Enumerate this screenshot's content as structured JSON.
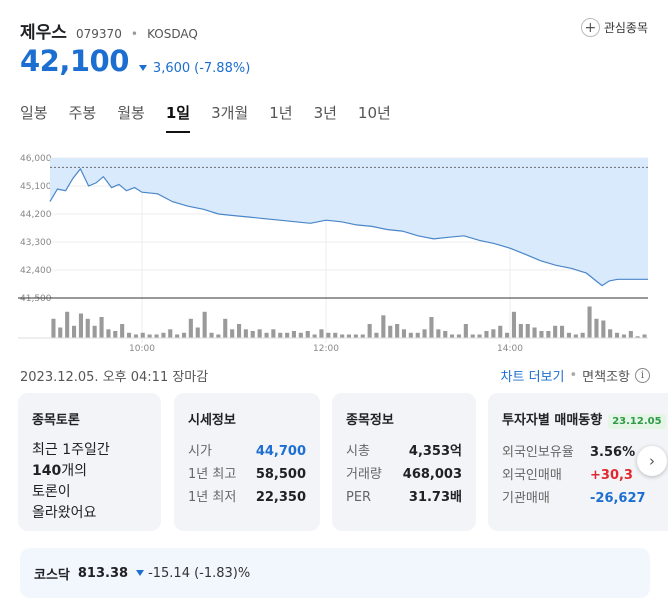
{
  "stock": {
    "name": "제우스",
    "code": "079370",
    "separator": "•",
    "market": "KOSDAQ",
    "watch_label": "관심종목",
    "price": "42,100",
    "change": "3,600",
    "change_pct": "(-7.88%)"
  },
  "tabs": [
    {
      "label": "일봉",
      "active": false
    },
    {
      "label": "주봉",
      "active": false
    },
    {
      "label": "월봉",
      "active": false
    },
    {
      "label": "1일",
      "active": true
    },
    {
      "label": "3개월",
      "active": false
    },
    {
      "label": "1년",
      "active": false
    },
    {
      "label": "3년",
      "active": false
    },
    {
      "label": "10년",
      "active": false
    }
  ],
  "chart_data": {
    "type": "area",
    "y_ticks": [
      "46,000",
      "45,100",
      "44,200",
      "43,300",
      "42,400",
      "41,500"
    ],
    "x_ticks": [
      "10:00",
      "12:00",
      "14:00"
    ],
    "ylim": [
      41500,
      46000
    ],
    "reference_price": 45700,
    "colors": {
      "line": "#4a86c8",
      "fill": "#d9eafc",
      "reference": "#6a6a6a",
      "volume": "#9a9a9a"
    },
    "series": [
      {
        "time": 9.0,
        "price": 44600
      },
      {
        "time": 9.08,
        "price": 45000
      },
      {
        "time": 9.17,
        "price": 44950
      },
      {
        "time": 9.25,
        "price": 45350
      },
      {
        "time": 9.33,
        "price": 45650
      },
      {
        "time": 9.42,
        "price": 45100
      },
      {
        "time": 9.5,
        "price": 45200
      },
      {
        "time": 9.58,
        "price": 45400
      },
      {
        "time": 9.67,
        "price": 45050
      },
      {
        "time": 9.75,
        "price": 45150
      },
      {
        "time": 9.83,
        "price": 44950
      },
      {
        "time": 9.92,
        "price": 45050
      },
      {
        "time": 10.0,
        "price": 44900
      },
      {
        "time": 10.17,
        "price": 44850
      },
      {
        "time": 10.33,
        "price": 44600
      },
      {
        "time": 10.5,
        "price": 44450
      },
      {
        "time": 10.67,
        "price": 44350
      },
      {
        "time": 10.83,
        "price": 44200
      },
      {
        "time": 11.0,
        "price": 44150
      },
      {
        "time": 11.17,
        "price": 44100
      },
      {
        "time": 11.33,
        "price": 44050
      },
      {
        "time": 11.5,
        "price": 44000
      },
      {
        "time": 11.67,
        "price": 43950
      },
      {
        "time": 11.83,
        "price": 43900
      },
      {
        "time": 12.0,
        "price": 44000
      },
      {
        "time": 12.17,
        "price": 43950
      },
      {
        "time": 12.33,
        "price": 43850
      },
      {
        "time": 12.5,
        "price": 43800
      },
      {
        "time": 12.67,
        "price": 43700
      },
      {
        "time": 12.83,
        "price": 43650
      },
      {
        "time": 13.0,
        "price": 43500
      },
      {
        "time": 13.17,
        "price": 43400
      },
      {
        "time": 13.33,
        "price": 43450
      },
      {
        "time": 13.5,
        "price": 43500
      },
      {
        "time": 13.67,
        "price": 43350
      },
      {
        "time": 13.83,
        "price": 43250
      },
      {
        "time": 14.0,
        "price": 43100
      },
      {
        "time": 14.17,
        "price": 42900
      },
      {
        "time": 14.33,
        "price": 42700
      },
      {
        "time": 14.5,
        "price": 42550
      },
      {
        "time": 14.67,
        "price": 42450
      },
      {
        "time": 14.83,
        "price": 42300
      },
      {
        "time": 15.0,
        "price": 41900
      },
      {
        "time": 15.08,
        "price": 42050
      },
      {
        "time": 15.17,
        "price": 42100
      },
      {
        "time": 15.33,
        "price": 42100
      },
      {
        "time": 15.5,
        "price": 42100
      }
    ],
    "volume": [
      22,
      12,
      30,
      14,
      28,
      22,
      14,
      24,
      10,
      8,
      16,
      6,
      4,
      6,
      4,
      4,
      6,
      10,
      4,
      6,
      22,
      12,
      30,
      6,
      4,
      22,
      10,
      16,
      10,
      8,
      10,
      6,
      10,
      6,
      6,
      8,
      6,
      8,
      4,
      10,
      6,
      6,
      4,
      4,
      4,
      4,
      16,
      6,
      26,
      14,
      16,
      10,
      6,
      6,
      10,
      24,
      10,
      8,
      4,
      4,
      16,
      4,
      4,
      8,
      10,
      14,
      6,
      30,
      16,
      16,
      12,
      8,
      8,
      14,
      14,
      6,
      4,
      6,
      36,
      22,
      20,
      10,
      6,
      4,
      8,
      2,
      4
    ]
  },
  "timestamp": "2023.12.05. 오후 04:11 장마감",
  "chart_links": {
    "more": "차트 더보기",
    "dot": "•",
    "disclaimer": "면책조항",
    "info": "i"
  },
  "cards": {
    "discussion": {
      "title": "종목토론",
      "line1": "최근 1주일간",
      "count": "140",
      "line2_suffix": "개의",
      "line3": "토론이",
      "line4": "올라왔어요"
    },
    "quote": {
      "title": "시세정보",
      "rows": [
        {
          "k": "시가",
          "v": "44,700"
        },
        {
          "k": "1년 최고",
          "v": "58,500"
        },
        {
          "k": "1년 최저",
          "v": "22,350"
        }
      ]
    },
    "info": {
      "title": "종목정보",
      "rows": [
        {
          "k": "시총",
          "v": "4,353억"
        },
        {
          "k": "거래량",
          "v": "468,003"
        },
        {
          "k": "PER",
          "v": "31.73배"
        }
      ]
    },
    "investor": {
      "title": "투자자별 매매동향",
      "badge": "23.12.05",
      "rows": [
        {
          "k": "외국인보유율",
          "v": "3.56%"
        },
        {
          "k": "외국인매매",
          "v": "+30,3"
        },
        {
          "k": "기관매매",
          "v": "-26,627"
        }
      ]
    }
  },
  "next_icon": "chevron-right-icon",
  "index": {
    "name": "코스닥",
    "value": "813.38",
    "change": "-15.14 (-1.83)%"
  }
}
